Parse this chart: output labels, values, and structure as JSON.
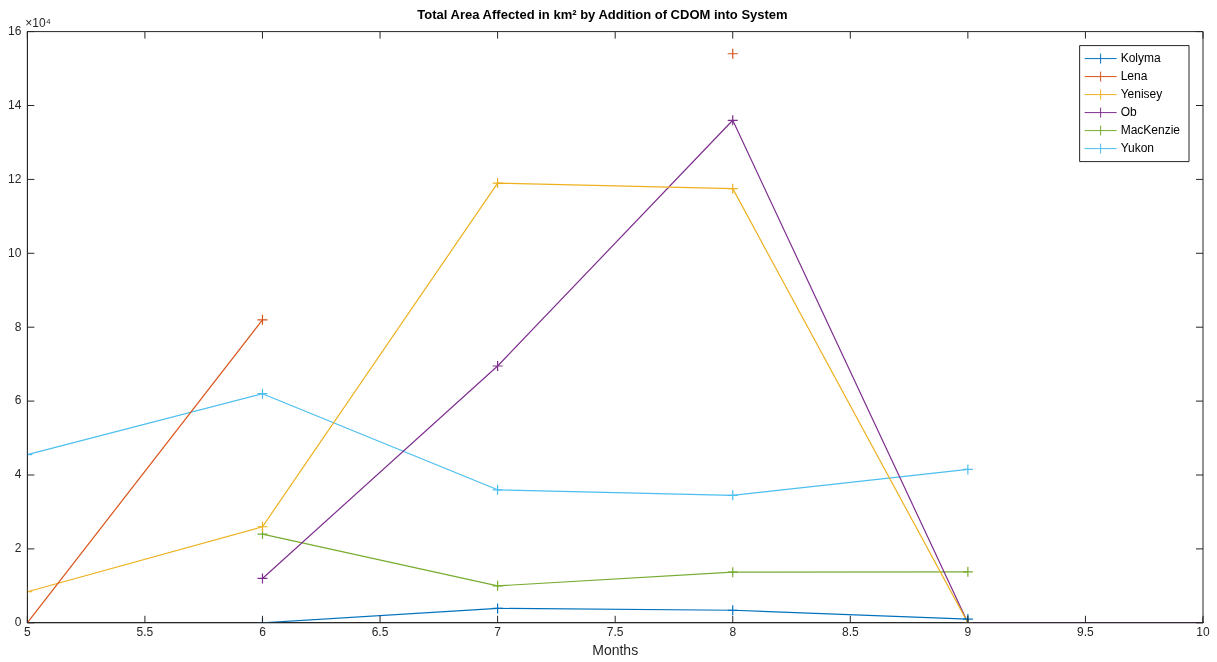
{
  "chart_data": {
    "type": "line",
    "title": "Total Area Affected in km² by Addition of CDOM into System",
    "xlabel": "Months",
    "annotations": [
      "×10⁴"
    ],
    "series": [
      {
        "name": "Kolyma",
        "color": "#0072bd",
        "x": [
          6,
          7,
          8,
          9
        ],
        "values": [
          0,
          0.39,
          0.34,
          0.1
        ]
      },
      {
        "name": "Lena",
        "color": "#d95319",
        "x": [
          5,
          6,
          7,
          8
        ],
        "values": [
          0,
          8.2,
          null,
          15.4
        ]
      },
      {
        "name": "Yenisey",
        "color": "#edb120",
        "x": [
          5,
          6,
          7,
          8,
          9
        ],
        "values": [
          0.84,
          2.6,
          11.9,
          11.75,
          0
        ]
      },
      {
        "name": "Ob",
        "color": "#7e2f8e",
        "x": [
          6,
          7,
          8,
          9,
          10
        ],
        "values": [
          1.2,
          6.95,
          13.6,
          0,
          0
        ]
      },
      {
        "name": "MacKenzie",
        "color": "#77ac30",
        "x": [
          6,
          7,
          8,
          9
        ],
        "values": [
          2.4,
          1.0,
          1.37,
          1.38
        ]
      },
      {
        "name": "Yukon",
        "color": "#4dbeee",
        "x": [
          5,
          6,
          7,
          8,
          9
        ],
        "values": [
          4.55,
          6.2,
          3.6,
          3.45,
          4.15
        ]
      }
    ],
    "xlim": [
      5,
      10
    ],
    "xticks": [
      5,
      5.5,
      6,
      6.5,
      7,
      7.5,
      8,
      8.5,
      9,
      9.5,
      10
    ],
    "ylim": [
      0,
      16
    ],
    "yticks": [
      0,
      2,
      4,
      6,
      8,
      10,
      12,
      14,
      16
    ],
    "grid": false,
    "legend": "top right",
    "marker": "cross",
    "line_style": "solid"
  }
}
